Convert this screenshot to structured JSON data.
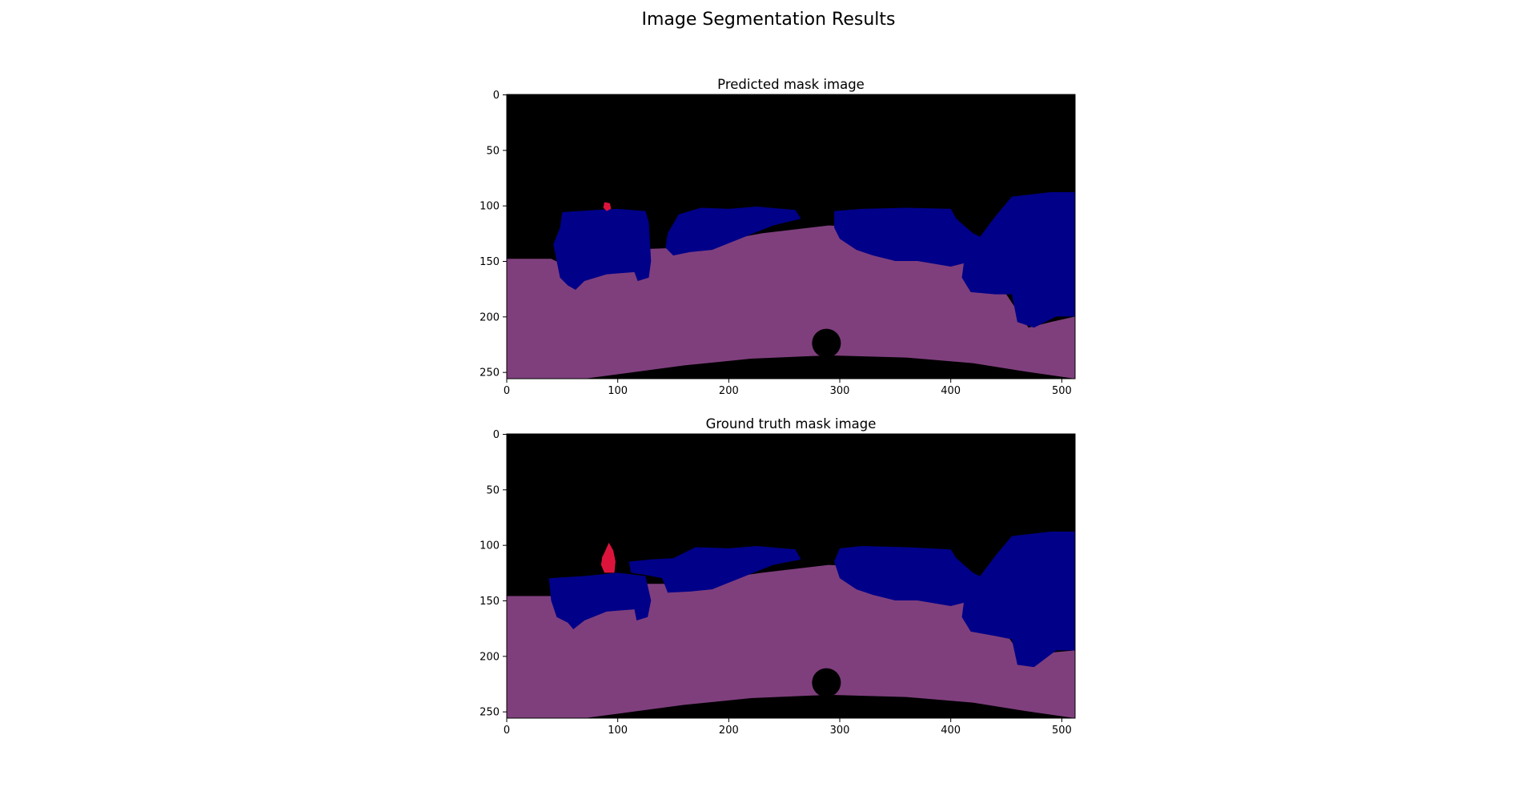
{
  "figure": {
    "title": "Image Segmentation Results"
  },
  "colors": {
    "background": "#000000",
    "road": "#7f3f7d",
    "vehicle": "#010088",
    "person": "#dc143c"
  },
  "panels": [
    {
      "title": "Predicted mask image",
      "x_ticks": [
        "0",
        "100",
        "200",
        "300",
        "400",
        "500"
      ],
      "y_ticks": [
        "0",
        "50",
        "100",
        "150",
        "200",
        "250"
      ]
    },
    {
      "title": "Ground truth mask image",
      "x_ticks": [
        "0",
        "100",
        "200",
        "300",
        "400",
        "500"
      ],
      "y_ticks": [
        "0",
        "50",
        "100",
        "150",
        "200",
        "250"
      ]
    }
  ]
}
